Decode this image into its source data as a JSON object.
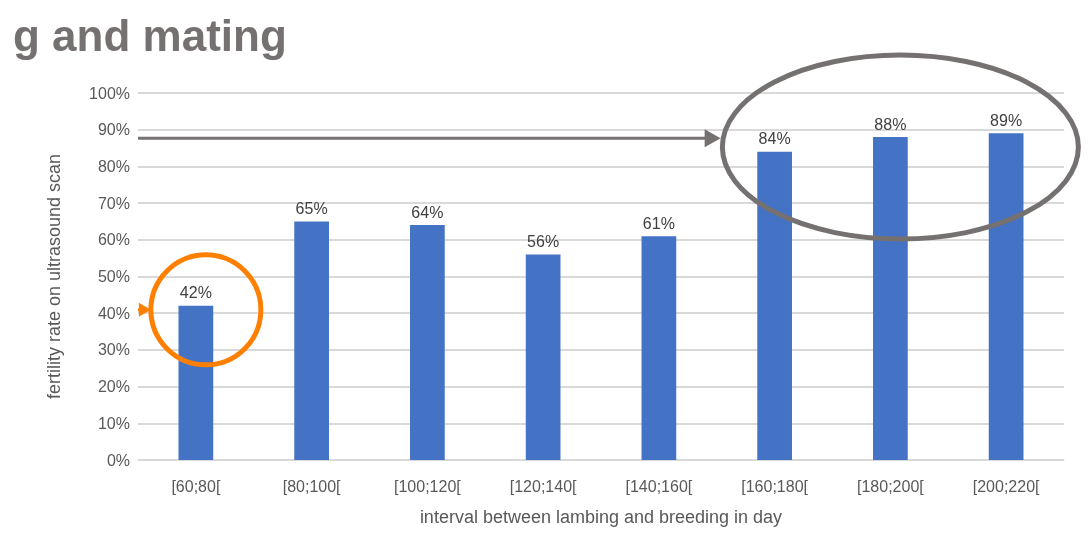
{
  "chart_data": {
    "type": "bar",
    "title": "g and mating",
    "xlabel": "interval between lambing and breeding in day",
    "ylabel": "fertility rate on ultrasound scan",
    "categories": [
      "[60;80[",
      "[80;100[",
      "[100;120[",
      "[120;140[",
      "[140;160[",
      "[160;180[",
      "[180;200[",
      "[200;220["
    ],
    "values": [
      42,
      65,
      64,
      56,
      61,
      84,
      88,
      89
    ],
    "color": "#4472c4",
    "value_labels": [
      "42%",
      "65%",
      "64%",
      "56%",
      "61%",
      "84%",
      "88%",
      "89%"
    ],
    "ylim": [
      0,
      100
    ],
    "yticks": [
      {
        "value": 0,
        "label": "0%"
      },
      {
        "value": 10,
        "label": "10%"
      },
      {
        "value": 20,
        "label": "20%"
      },
      {
        "value": 30,
        "label": "30%"
      },
      {
        "value": 40,
        "label": "40%"
      },
      {
        "value": 50,
        "label": "50%"
      },
      {
        "value": 60,
        "label": "60%"
      },
      {
        "value": 70,
        "label": "70%"
      },
      {
        "value": 80,
        "label": "80%"
      },
      {
        "value": 90,
        "label": "90%"
      },
      {
        "value": 100,
        "label": "100%"
      }
    ],
    "grid": "y"
  }
}
